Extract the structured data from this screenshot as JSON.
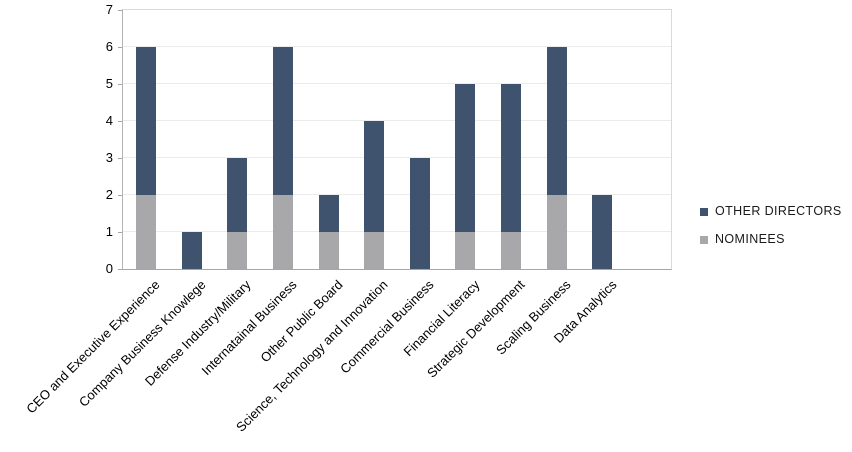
{
  "chart_data": {
    "type": "bar",
    "stacked": true,
    "title": "",
    "xlabel": "",
    "ylabel": "",
    "categories": [
      "CEO and Executive Experience",
      "Company Business Knowlege",
      "Defense Industry/Military",
      "Internatainal Business",
      "Other Public Board",
      "Science, Technology and Innovation",
      "Commercial Business",
      "Financial Literacy",
      "Strategic Development",
      "Scaling Business",
      "Data Analytics"
    ],
    "series": [
      {
        "name": "NOMINEES",
        "color": "#a8a8ab",
        "values": [
          2,
          0,
          1,
          2,
          1,
          1,
          0,
          1,
          1,
          2,
          0
        ]
      },
      {
        "name": "OTHER DIRECTORS",
        "color": "#3f536e",
        "values": [
          4,
          1,
          2,
          4,
          1,
          3,
          3,
          4,
          4,
          4,
          2
        ]
      }
    ],
    "stack_totals": [
      6,
      1,
      3,
      6,
      2,
      4,
      3,
      5,
      5,
      6,
      2
    ],
    "ylim": [
      0,
      7
    ],
    "yticks": [
      0,
      1,
      2,
      3,
      4,
      5,
      6,
      7
    ],
    "grid": true,
    "legend_position": "right",
    "legend": [
      {
        "label": "OTHER DIRECTORS",
        "color": "#3f536e"
      },
      {
        "label": "NOMINEES",
        "color": "#a8a8ab"
      }
    ],
    "empty_trailing_slots": 1
  },
  "colors": {
    "background": "#ffffff",
    "gridline": "#ebebeb",
    "axis_line": "#a6a6a6",
    "plot_border": "#d9d9d9",
    "text": "#000000"
  }
}
